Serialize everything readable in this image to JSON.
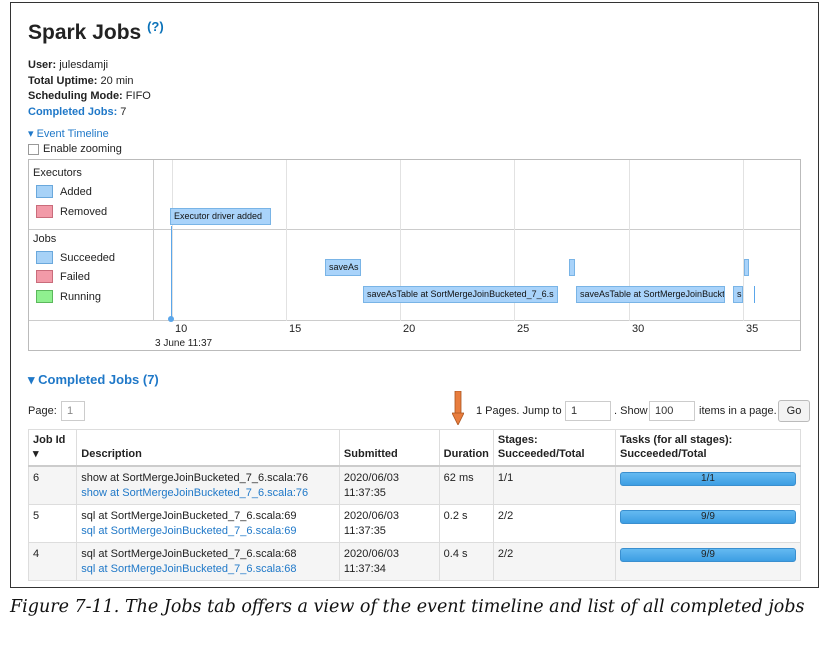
{
  "header": {
    "title": "Spark Jobs",
    "help": "(?)"
  },
  "summary": {
    "user_label": "User:",
    "user": "julesdamji",
    "uptime_label": "Total Uptime:",
    "uptime": "20 min",
    "mode_label": "Scheduling Mode:",
    "mode": "FIFO",
    "completed_label": "Completed Jobs:",
    "completed": "7"
  },
  "timeline": {
    "toggle": "▾ Event Timeline",
    "zoom_label": "Enable zooming",
    "executors_label": "Executors",
    "executors_legend": [
      "Added",
      "Removed"
    ],
    "jobs_label": "Jobs",
    "jobs_legend": [
      "Succeeded",
      "Failed",
      "Running"
    ],
    "events": {
      "executor": "Executor driver added",
      "job1": "saveAs",
      "job2": "saveAsTable at SortMergeJoinBucketed_7_6.s",
      "job3": "saveAsTable at SortMergeJoinBuckt",
      "job4": "s"
    },
    "axis_ticks": [
      "10",
      "15",
      "20",
      "25",
      "30",
      "35"
    ],
    "axis_date": "3 June 11:37"
  },
  "completed_section": {
    "title": "▾ Completed Jobs (7)"
  },
  "paging": {
    "page_label": "Page:",
    "page_value": "1",
    "pages_text": "1 Pages. Jump to",
    "jump_value": "1",
    "show_label": ". Show",
    "show_value": "100",
    "items_label": "items in a page.",
    "go": "Go"
  },
  "table": {
    "headers": {
      "job_id": "Job Id ▾",
      "description": "Description",
      "submitted": "Submitted",
      "duration": "Duration",
      "stages": "Stages: Succeeded/Total",
      "tasks": "Tasks (for all stages): Succeeded/Total"
    },
    "rows": [
      {
        "id": "6",
        "desc": "show at SortMergeJoinBucketed_7_6.scala:76",
        "link": "show at SortMergeJoinBucketed_7_6.scala:76",
        "date": "2020/06/03",
        "time": "11:37:35",
        "duration": "62 ms",
        "stages": "1/1",
        "tasks": "1/1",
        "progress": 1.0
      },
      {
        "id": "5",
        "desc": "sql at SortMergeJoinBucketed_7_6.scala:69",
        "link": "sql at SortMergeJoinBucketed_7_6.scala:69",
        "date": "2020/06/03",
        "time": "11:37:35",
        "duration": "0.2 s",
        "stages": "2/2",
        "tasks": "9/9",
        "progress": 1.0
      },
      {
        "id": "4",
        "desc": "sql at SortMergeJoinBucketed_7_6.scala:68",
        "link": "sql at SortMergeJoinBucketed_7_6.scala:68",
        "date": "2020/06/03",
        "time": "11:37:34",
        "duration": "0.4 s",
        "stages": "2/2",
        "tasks": "9/9",
        "progress": 1.0
      }
    ]
  },
  "caption": "Figure 7-11. The Jobs tab offers a view of the event timeline and list of all completed jobs",
  "colors": {
    "link": "#1f78c8",
    "bar": "#3d9ee3",
    "arrow": "#e87d3e"
  }
}
